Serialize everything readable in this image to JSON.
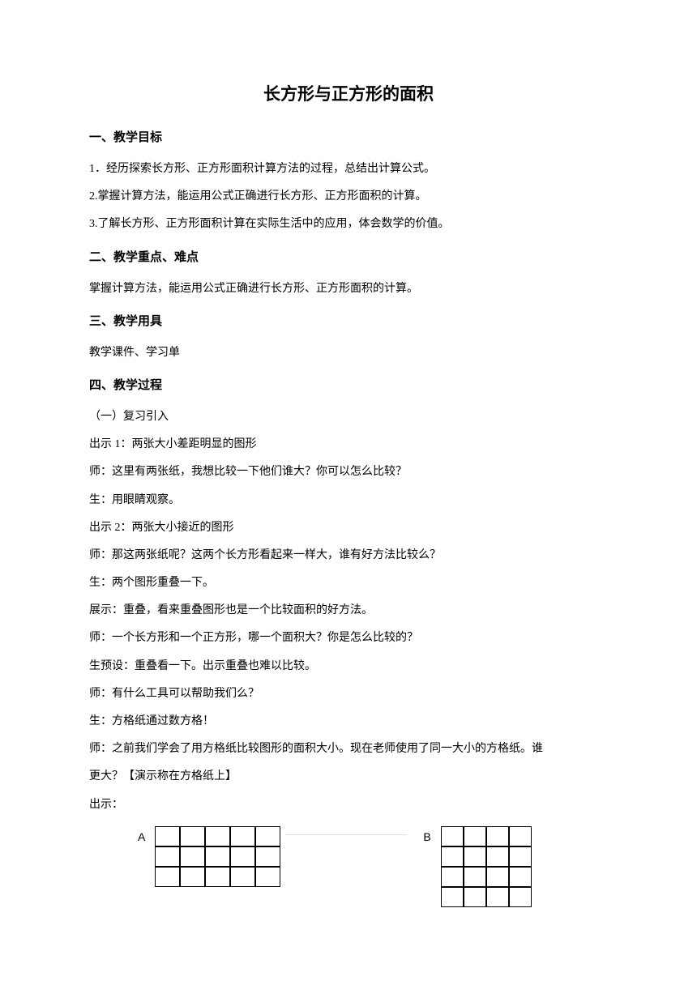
{
  "title": "长方形与正方形的面积",
  "sections": {
    "s1": {
      "heading": "一、教学目标",
      "items": [
        "1．经历探索长方形、正方形面积计算方法的过程，总结出计算公式。",
        "2.掌握计算方法，能运用公式正确进行长方形、正方形面积的计算。",
        "3.了解长方形、正方形面积计算在实际生活中的应用，体会数学的价值。"
      ]
    },
    "s2": {
      "heading": "二、教学重点、难点",
      "text": "掌握计算方法，能运用公式正确进行长方形、正方形面积的计算。"
    },
    "s3": {
      "heading": "三、教学用具",
      "text": "教学课件、学习单"
    },
    "s4": {
      "heading": "四、教学过程",
      "sub": "（一）复习引入",
      "lines": [
        "出示 1：两张大小差距明显的图形",
        "师：这里有两张纸，我想比较一下他们谁大？你可以怎么比较？",
        "生：用眼睛观察。",
        "出示 2：两张大小接近的图形",
        "师：那这两张纸呢？这两个长方形看起来一样大，谁有好方法比较么？",
        "生：两个图形重叠一下。",
        "展示：重叠，看来重叠图形也是一个比较面积的好方法。",
        "师：一个长方形和一个正方形，哪一个面积大？你是怎么比较的？",
        "生预设：重叠看一下。出示重叠也难以比较。",
        "师：有什么工具可以帮助我们么？",
        "生：方格纸通过数方格！",
        "师：之前我们学会了用方格纸比较图形的面积大小。现在老师使用了同一大小的方格纸。谁",
        "更大？【演示称在方格纸上】",
        "出示："
      ]
    }
  },
  "figures": {
    "a": {
      "label": "A",
      "cols": 5,
      "rows": 3
    },
    "b": {
      "label": "B",
      "cols": 4,
      "rows": 4
    }
  }
}
